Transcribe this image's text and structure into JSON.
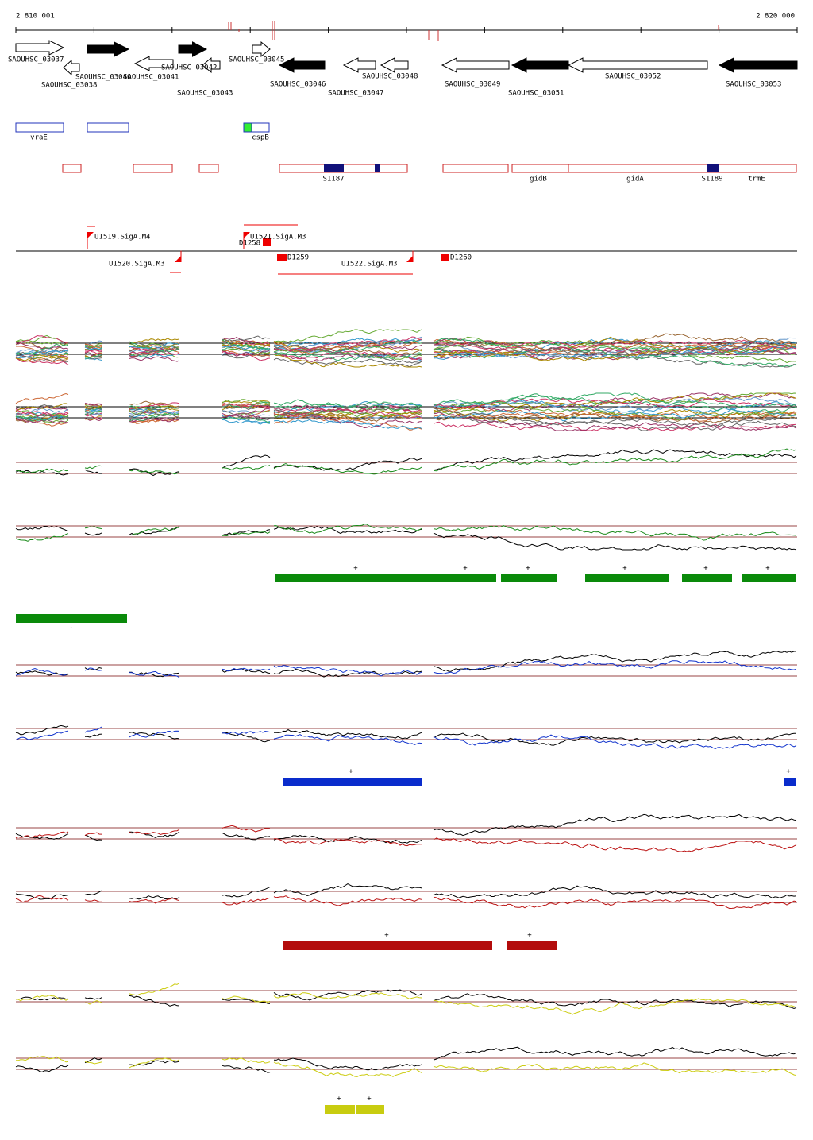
{
  "ruler": {
    "start": "2 810 001",
    "end": "2 820 000"
  },
  "genes": [
    "SAOUHSC_03037",
    "SAOUHSC_03038",
    "SAOUHSC_03040",
    "SAOUHSC_03041",
    "SAOUHSC_03042",
    "SAOUHSC_03043",
    "SAOUHSC_03045",
    "SAOUHSC_03046",
    "SAOUHSC_03047",
    "SAOUHSC_03048",
    "SAOUHSC_03049",
    "SAOUHSC_03051",
    "SAOUHSC_03052",
    "SAOUHSC_03053"
  ],
  "features": [
    "vraE",
    "cspB"
  ],
  "regions": [
    "S1187",
    "gidB",
    "gidA",
    "S1189",
    "trmE"
  ],
  "promoters": [
    "U1519.SigA.M4",
    "D1258",
    "U1521.SigA.M3",
    "U1520.SigA.M3",
    "D1259",
    "U1522.SigA.M3",
    "D1260"
  ],
  "strand_signs": {
    "green": [
      "+",
      "+",
      "+",
      "+",
      "+",
      "+"
    ],
    "green_minus": [
      "-"
    ],
    "blue": [
      "+",
      "+"
    ],
    "red": [
      "+",
      "+"
    ],
    "yellow": [
      "+",
      "+"
    ]
  }
}
